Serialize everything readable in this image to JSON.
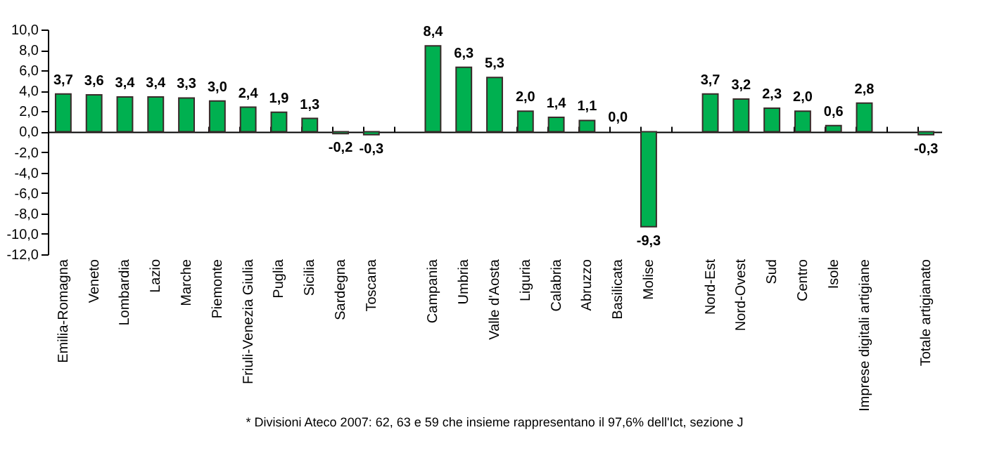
{
  "chart_data": {
    "type": "bar",
    "categories": [
      "Emilia-Romagna",
      "Veneto",
      "Lombardia",
      "Lazio",
      "Marche",
      "Piemonte",
      "Friuli-Venezia Giulia",
      "Puglia",
      "Sicilia",
      "Sardegna",
      "Toscana",
      null,
      "Campania",
      "Umbria",
      "Valle d'Aosta",
      "Liguria",
      "Calabria",
      "Abruzzo",
      "Basilicata",
      "Molise",
      null,
      "Nord-Est",
      "Nord-Ovest",
      "Sud",
      "Centro",
      "Isole",
      "Imprese digitali artigiane",
      null,
      "Totale artigianato"
    ],
    "values": [
      3.7,
      3.6,
      3.4,
      3.4,
      3.3,
      3.0,
      2.4,
      1.9,
      1.3,
      -0.2,
      -0.3,
      null,
      8.4,
      6.3,
      5.3,
      2.0,
      1.4,
      1.1,
      0.0,
      -9.3,
      null,
      3.7,
      3.2,
      2.3,
      2.0,
      0.6,
      2.8,
      null,
      -0.3
    ],
    "value_labels": [
      "3,7",
      "3,6",
      "3,4",
      "3,4",
      "3,3",
      "3,0",
      "2,4",
      "1,9",
      "1,3",
      "-0,2",
      "-0,3",
      null,
      "8,4",
      "6,3",
      "5,3",
      "2,0",
      "1,4",
      "1,1",
      "0,0",
      "-9,3",
      null,
      "3,7",
      "3,2",
      "2,3",
      "2,0",
      "0,6",
      "2,8",
      null,
      "-0,3"
    ],
    "color": "#00b050",
    "ylim": [
      -12,
      10
    ],
    "yticks": [
      {
        "value": -12,
        "label": "-12,0"
      },
      {
        "value": -10,
        "label": "-10,0"
      },
      {
        "value": -8,
        "label": "-8,0"
      },
      {
        "value": -6,
        "label": "-6,0"
      },
      {
        "value": -4,
        "label": "-4,0"
      },
      {
        "value": -2,
        "label": "-2,0"
      },
      {
        "value": 0,
        "label": "0,0"
      },
      {
        "value": 2,
        "label": "2,0"
      },
      {
        "value": 4,
        "label": "4,0"
      },
      {
        "value": 6,
        "label": "6,0"
      },
      {
        "value": 8,
        "label": "8,0"
      },
      {
        "value": 10,
        "label": "10,0"
      }
    ],
    "annotations": [
      "* Divisioni Ateco 2007: 62, 63 e 59 che insieme rappresentano il 97,6% dell'Ict, sezione J"
    ]
  }
}
